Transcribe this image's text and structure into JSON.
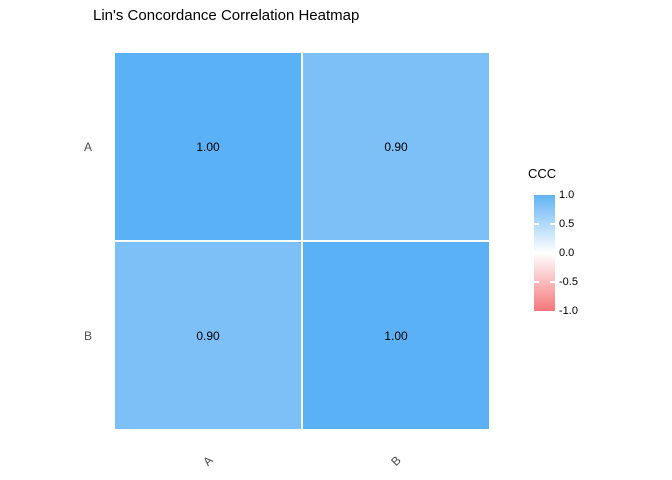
{
  "chart_data": {
    "type": "heatmap",
    "title": "Lin's Concordance Correlation Heatmap",
    "xlabel": "",
    "ylabel": "",
    "x_categories": [
      "A",
      "B"
    ],
    "y_categories": [
      "A",
      "B"
    ],
    "cells": [
      {
        "row": "A",
        "col": "A",
        "value": 1.0,
        "label": "1.00",
        "color": "#5BB1F5"
      },
      {
        "row": "A",
        "col": "B",
        "value": 0.9,
        "label": "0.90",
        "color": "#7DBFF7"
      },
      {
        "row": "B",
        "col": "A",
        "value": 0.9,
        "label": "0.90",
        "color": "#7DBFF7"
      },
      {
        "row": "B",
        "col": "B",
        "value": 1.0,
        "label": "1.00",
        "color": "#5BB1F5"
      }
    ],
    "legend": {
      "title": "CCC",
      "position": "right",
      "ticks": [
        "1.0",
        "0.5",
        "0.0",
        "-0.5",
        "-1.0"
      ],
      "range": [
        -1.0,
        1.0
      ],
      "gradient_stops": [
        "#63B3F4",
        "#FFFFFF",
        "#F4777B"
      ]
    },
    "layout": {
      "grid": "off",
      "background": "#FFFFFF",
      "axis_text_color": "#4D4D4D",
      "cell_text_color": "#000000",
      "x_tick_angle_deg": 45
    }
  }
}
